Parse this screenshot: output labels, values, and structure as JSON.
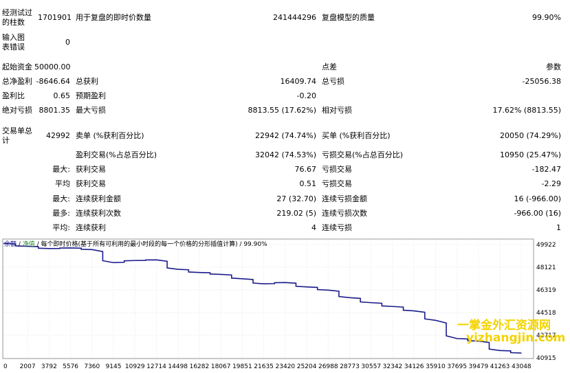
{
  "report": {
    "bars_label": "经测试过的柱数",
    "bars_value": "1701901",
    "ticks_label": "用于复盘的即时价数量",
    "ticks_value": "241444296",
    "quality_label": "复盘模型的质量",
    "quality_value": "99.90%",
    "errors_label": "输入图表错误",
    "errors_value": "0",
    "deposit_label": "起始资金",
    "deposit_value": "50000.00",
    "spread_label": "点差",
    "spread_value": "参数",
    "net_profit_label": "总净盈利",
    "net_profit_value": "-8646.64",
    "gross_profit_label": "总获利",
    "gross_profit_value": "16409.74",
    "gross_loss_label": "总亏损",
    "gross_loss_value": "-25056.38",
    "profit_factor_label": "盈利比",
    "profit_factor_value": "0.65",
    "expected_payoff_label": "预期盈利",
    "expected_payoff_value": "-0.20",
    "abs_dd_label": "绝对亏损",
    "abs_dd_value": "8801.35",
    "max_dd_label": "最大亏损",
    "max_dd_value": "8813.55 (17.62%)",
    "rel_dd_label": "相对亏损",
    "rel_dd_value": "17.62% (8813.55)",
    "total_trades_label": "交易单总计",
    "total_trades_value": "42992",
    "short_label": "卖单 (%获利百分比)",
    "short_value": "22942 (74.74%)",
    "long_label": "买单 (%获利百分比)",
    "long_value": "20050 (74.29%)",
    "profit_trades_label": "盈利交易(%占总百分比)",
    "profit_trades_value": "32042 (74.53%)",
    "loss_trades_label": "亏损交易(%占总百分比)",
    "loss_trades_value": "10950 (25.47%)",
    "largest_prefix": "最大:",
    "largest_profit_label": "获利交易",
    "largest_profit_value": "76.67",
    "largest_loss_label": "亏损交易",
    "largest_loss_value": "-182.47",
    "average_prefix": "平均",
    "avg_profit_label": "获利交易",
    "avg_profit_value": "0.51",
    "avg_loss_label": "亏损交易",
    "avg_loss_value": "-2.29",
    "max_prefix": "最大:",
    "max_cons_wins_label": "连续获利金额",
    "max_cons_wins_value": "27 (32.70)",
    "max_cons_losses_label": "连续亏损金额",
    "max_cons_losses_value": "16 (-966.00)",
    "most_prefix": "最多:",
    "max_cons_profit_label": "连续获利次数",
    "max_cons_profit_value": "219.02 (5)",
    "max_cons_loss_label": "连续亏损次数",
    "max_cons_loss_value": "-966.00 (16)",
    "avg2_prefix": "平均:",
    "avg_cons_wins_label": "连续获利",
    "avg_cons_wins_value": "4",
    "avg_cons_losses_label": "连续亏损",
    "avg_cons_losses_value": "1"
  },
  "chart_legend": {
    "balance": "余额",
    "sep1": " / ",
    "equity": "净值",
    "rest": " / 每个即时价格(基于所有可利用的最小时段的每一个价格的分形插值计算) / 99.90%"
  },
  "watermark": {
    "line1": "一掌金外汇资源网",
    "line2": "yizhangjin.com"
  },
  "colors": {
    "balance": "#1a1a8c",
    "equity": "#2e8b2e",
    "watermark": "#f4d300"
  },
  "chart_data": {
    "type": "line",
    "x": [
      0,
      2007,
      3792,
      5576,
      7360,
      9145,
      10929,
      12714,
      14498,
      16282,
      18067,
      19851,
      21635,
      23420,
      25204,
      26988,
      28773,
      30557,
      32342,
      34126,
      35910,
      37695,
      39479,
      41263,
      43048
    ],
    "x_tick_labels": [
      "0",
      "2007",
      "3792",
      "5576",
      "7360",
      "9145",
      "10929",
      "12714",
      "14498",
      "16282",
      "18067",
      "19851",
      "21635",
      "23420",
      "25204",
      "26988",
      "28773",
      "30557",
      "32342",
      "34126",
      "35910",
      "37695",
      "39479",
      "41263",
      "43048"
    ],
    "y_tick_labels": [
      "49922",
      "48121",
      "46319",
      "44518",
      "42717",
      "40915"
    ],
    "ylim": [
      40915,
      50300
    ],
    "xlim": [
      0,
      44000
    ],
    "series": [
      {
        "name": "余额",
        "values": [
          50000,
          49780,
          49600,
          49650,
          49520,
          48480,
          48650,
          48700,
          47950,
          47700,
          47550,
          47200,
          46800,
          46900,
          46550,
          46300,
          45700,
          45300,
          45000,
          44650,
          43900,
          42450,
          42250,
          41500,
          41300
        ]
      }
    ]
  }
}
